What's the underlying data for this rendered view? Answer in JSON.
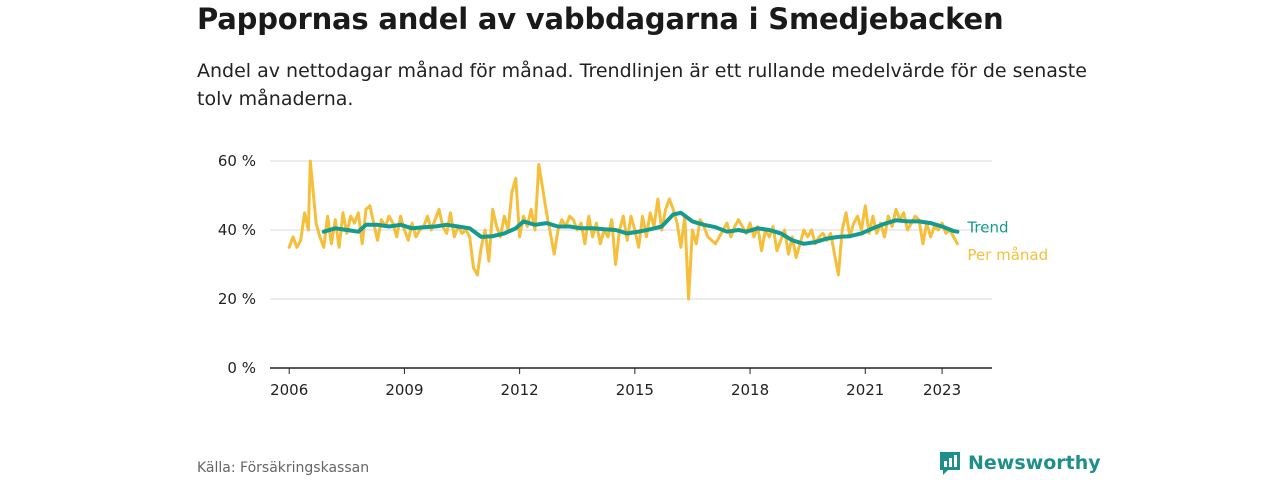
{
  "header": {
    "title": "Pappornas andel av vabbdagarna i Smedjebacken",
    "subtitle": "Andel av nettodagar månad för månad. Trendlinjen är ett rullande medelvärde för de senaste tolv månaderna."
  },
  "footer": {
    "source": "Källa: Försäkringskassan",
    "brand": "Newsworthy"
  },
  "colors": {
    "monthly": "#f6bf3b",
    "trend": "#149a8e",
    "grid": "#d9d9d9",
    "axis": "#222222"
  },
  "chart_data": {
    "type": "line",
    "ylim": [
      0,
      60
    ],
    "yticks": [
      {
        "value": 0,
        "label": "0 %"
      },
      {
        "value": 20,
        "label": "20 %"
      },
      {
        "value": 40,
        "label": "40 %"
      },
      {
        "value": 60,
        "label": "60 %"
      }
    ],
    "xlim": [
      2005.5,
      2024.3
    ],
    "xticks": [
      {
        "value": 2006,
        "label": "2006"
      },
      {
        "value": 2009,
        "label": "2009"
      },
      {
        "value": 2012,
        "label": "2012"
      },
      {
        "value": 2015,
        "label": "2015"
      },
      {
        "value": 2018,
        "label": "2018"
      },
      {
        "value": 2021,
        "label": "2021"
      },
      {
        "value": 2023,
        "label": "2023"
      }
    ],
    "grid": true,
    "series": [
      {
        "name": "Per månad",
        "color": "#f6bf3b",
        "points": [
          [
            2006.0,
            35
          ],
          [
            2006.1,
            38
          ],
          [
            2006.2,
            35
          ],
          [
            2006.3,
            37
          ],
          [
            2006.4,
            45
          ],
          [
            2006.5,
            40
          ],
          [
            2006.55,
            60
          ],
          [
            2006.7,
            42
          ],
          [
            2006.8,
            38
          ],
          [
            2006.9,
            35
          ],
          [
            2007.0,
            44
          ],
          [
            2007.1,
            36
          ],
          [
            2007.2,
            43
          ],
          [
            2007.3,
            35
          ],
          [
            2007.4,
            45
          ],
          [
            2007.5,
            39
          ],
          [
            2007.6,
            44
          ],
          [
            2007.7,
            42
          ],
          [
            2007.8,
            45
          ],
          [
            2007.9,
            36
          ],
          [
            2008.0,
            46
          ],
          [
            2008.1,
            47
          ],
          [
            2008.2,
            42
          ],
          [
            2008.3,
            37
          ],
          [
            2008.4,
            43
          ],
          [
            2008.5,
            41
          ],
          [
            2008.6,
            44
          ],
          [
            2008.7,
            42
          ],
          [
            2008.8,
            38
          ],
          [
            2008.9,
            44
          ],
          [
            2009.0,
            40
          ],
          [
            2009.1,
            37
          ],
          [
            2009.2,
            42
          ],
          [
            2009.3,
            38
          ],
          [
            2009.4,
            40
          ],
          [
            2009.5,
            41
          ],
          [
            2009.6,
            44
          ],
          [
            2009.7,
            40
          ],
          [
            2009.8,
            43
          ],
          [
            2009.9,
            46
          ],
          [
            2010.0,
            41
          ],
          [
            2010.1,
            39
          ],
          [
            2010.2,
            45
          ],
          [
            2010.3,
            38
          ],
          [
            2010.4,
            41
          ],
          [
            2010.5,
            39
          ],
          [
            2010.6,
            40
          ],
          [
            2010.7,
            38
          ],
          [
            2010.8,
            29
          ],
          [
            2010.9,
            27
          ],
          [
            2011.0,
            35
          ],
          [
            2011.1,
            40
          ],
          [
            2011.2,
            31
          ],
          [
            2011.3,
            46
          ],
          [
            2011.4,
            41
          ],
          [
            2011.5,
            38
          ],
          [
            2011.6,
            44
          ],
          [
            2011.7,
            40
          ],
          [
            2011.8,
            51
          ],
          [
            2011.9,
            55
          ],
          [
            2012.0,
            38
          ],
          [
            2012.1,
            44
          ],
          [
            2012.2,
            41
          ],
          [
            2012.3,
            46
          ],
          [
            2012.4,
            40
          ],
          [
            2012.5,
            59
          ],
          [
            2012.6,
            52
          ],
          [
            2012.7,
            45
          ],
          [
            2012.8,
            39
          ],
          [
            2012.9,
            33
          ],
          [
            2013.0,
            40
          ],
          [
            2013.1,
            43
          ],
          [
            2013.2,
            41
          ],
          [
            2013.3,
            44
          ],
          [
            2013.4,
            43
          ],
          [
            2013.5,
            40
          ],
          [
            2013.6,
            42
          ],
          [
            2013.7,
            36
          ],
          [
            2013.8,
            44
          ],
          [
            2013.9,
            38
          ],
          [
            2014.0,
            42
          ],
          [
            2014.1,
            36
          ],
          [
            2014.2,
            40
          ],
          [
            2014.3,
            38
          ],
          [
            2014.4,
            43
          ],
          [
            2014.5,
            30
          ],
          [
            2014.6,
            40
          ],
          [
            2014.7,
            44
          ],
          [
            2014.8,
            37
          ],
          [
            2014.9,
            44
          ],
          [
            2015.0,
            40
          ],
          [
            2015.1,
            35
          ],
          [
            2015.2,
            44
          ],
          [
            2015.3,
            38
          ],
          [
            2015.4,
            45
          ],
          [
            2015.5,
            41
          ],
          [
            2015.6,
            49
          ],
          [
            2015.7,
            40
          ],
          [
            2015.8,
            46
          ],
          [
            2015.9,
            49
          ],
          [
            2016.0,
            46
          ],
          [
            2016.1,
            42
          ],
          [
            2016.2,
            35
          ],
          [
            2016.3,
            44
          ],
          [
            2016.4,
            20
          ],
          [
            2016.5,
            40
          ],
          [
            2016.6,
            36
          ],
          [
            2016.7,
            43
          ],
          [
            2016.8,
            41
          ],
          [
            2016.9,
            38
          ],
          [
            2017.0,
            37
          ],
          [
            2017.1,
            36
          ],
          [
            2017.2,
            38
          ],
          [
            2017.3,
            40
          ],
          [
            2017.4,
            42
          ],
          [
            2017.5,
            38
          ],
          [
            2017.6,
            41
          ],
          [
            2017.7,
            43
          ],
          [
            2017.8,
            41
          ],
          [
            2017.9,
            39
          ],
          [
            2018.0,
            42
          ],
          [
            2018.1,
            38
          ],
          [
            2018.2,
            41
          ],
          [
            2018.3,
            34
          ],
          [
            2018.4,
            40
          ],
          [
            2018.5,
            38
          ],
          [
            2018.6,
            41
          ],
          [
            2018.7,
            34
          ],
          [
            2018.8,
            37
          ],
          [
            2018.9,
            40
          ],
          [
            2019.0,
            33
          ],
          [
            2019.1,
            38
          ],
          [
            2019.2,
            32
          ],
          [
            2019.3,
            36
          ],
          [
            2019.4,
            40
          ],
          [
            2019.5,
            38
          ],
          [
            2019.6,
            40
          ],
          [
            2019.7,
            36
          ],
          [
            2019.8,
            38
          ],
          [
            2019.9,
            39
          ],
          [
            2020.0,
            37
          ],
          [
            2020.1,
            39
          ],
          [
            2020.2,
            33
          ],
          [
            2020.3,
            27
          ],
          [
            2020.4,
            40
          ],
          [
            2020.5,
            45
          ],
          [
            2020.6,
            38
          ],
          [
            2020.7,
            42
          ],
          [
            2020.8,
            44
          ],
          [
            2020.9,
            40
          ],
          [
            2021.0,
            47
          ],
          [
            2021.1,
            39
          ],
          [
            2021.2,
            44
          ],
          [
            2021.3,
            39
          ],
          [
            2021.4,
            42
          ],
          [
            2021.5,
            38
          ],
          [
            2021.6,
            44
          ],
          [
            2021.7,
            41
          ],
          [
            2021.8,
            46
          ],
          [
            2021.9,
            43
          ],
          [
            2022.0,
            45
          ],
          [
            2022.1,
            40
          ],
          [
            2022.2,
            42
          ],
          [
            2022.3,
            44
          ],
          [
            2022.4,
            43
          ],
          [
            2022.5,
            36
          ],
          [
            2022.6,
            42
          ],
          [
            2022.7,
            38
          ],
          [
            2022.8,
            41
          ],
          [
            2022.9,
            40
          ],
          [
            2023.0,
            42
          ],
          [
            2023.1,
            39
          ],
          [
            2023.2,
            40
          ],
          [
            2023.3,
            38
          ],
          [
            2023.4,
            36
          ]
        ]
      },
      {
        "name": "Trend",
        "color": "#149a8e",
        "points": [
          [
            2006.9,
            39.5
          ],
          [
            2007.2,
            40.5
          ],
          [
            2007.5,
            40
          ],
          [
            2007.8,
            39.5
          ],
          [
            2008.0,
            41.5
          ],
          [
            2008.3,
            41.5
          ],
          [
            2008.6,
            41
          ],
          [
            2008.9,
            41.5
          ],
          [
            2009.2,
            40.5
          ],
          [
            2009.5,
            40.8
          ],
          [
            2009.8,
            41
          ],
          [
            2010.1,
            41.5
          ],
          [
            2010.4,
            41
          ],
          [
            2010.7,
            40.5
          ],
          [
            2011.0,
            38
          ],
          [
            2011.3,
            38.2
          ],
          [
            2011.6,
            39
          ],
          [
            2011.9,
            40.5
          ],
          [
            2012.1,
            42.5
          ],
          [
            2012.4,
            41.5
          ],
          [
            2012.7,
            42
          ],
          [
            2013.0,
            41
          ],
          [
            2013.3,
            41
          ],
          [
            2013.6,
            40.5
          ],
          [
            2013.9,
            40.5
          ],
          [
            2014.2,
            40.2
          ],
          [
            2014.5,
            40
          ],
          [
            2014.8,
            39
          ],
          [
            2015.1,
            39.5
          ],
          [
            2015.4,
            40.2
          ],
          [
            2015.7,
            41
          ],
          [
            2016.0,
            44.5
          ],
          [
            2016.2,
            45
          ],
          [
            2016.5,
            42.5
          ],
          [
            2016.8,
            41.5
          ],
          [
            2017.1,
            40.8
          ],
          [
            2017.4,
            39.5
          ],
          [
            2017.7,
            40
          ],
          [
            2017.9,
            39.5
          ],
          [
            2018.2,
            40.5
          ],
          [
            2018.5,
            40
          ],
          [
            2018.8,
            39
          ],
          [
            2019.1,
            37
          ],
          [
            2019.4,
            36
          ],
          [
            2019.7,
            36.5
          ],
          [
            2020.0,
            37.5
          ],
          [
            2020.3,
            38
          ],
          [
            2020.6,
            38.2
          ],
          [
            2020.9,
            39
          ],
          [
            2021.2,
            40.5
          ],
          [
            2021.5,
            41.8
          ],
          [
            2021.8,
            42.8
          ],
          [
            2022.1,
            42.5
          ],
          [
            2022.4,
            42.5
          ],
          [
            2022.7,
            42
          ],
          [
            2023.0,
            41
          ],
          [
            2023.3,
            39.7
          ],
          [
            2023.4,
            39.5
          ]
        ]
      }
    ]
  }
}
